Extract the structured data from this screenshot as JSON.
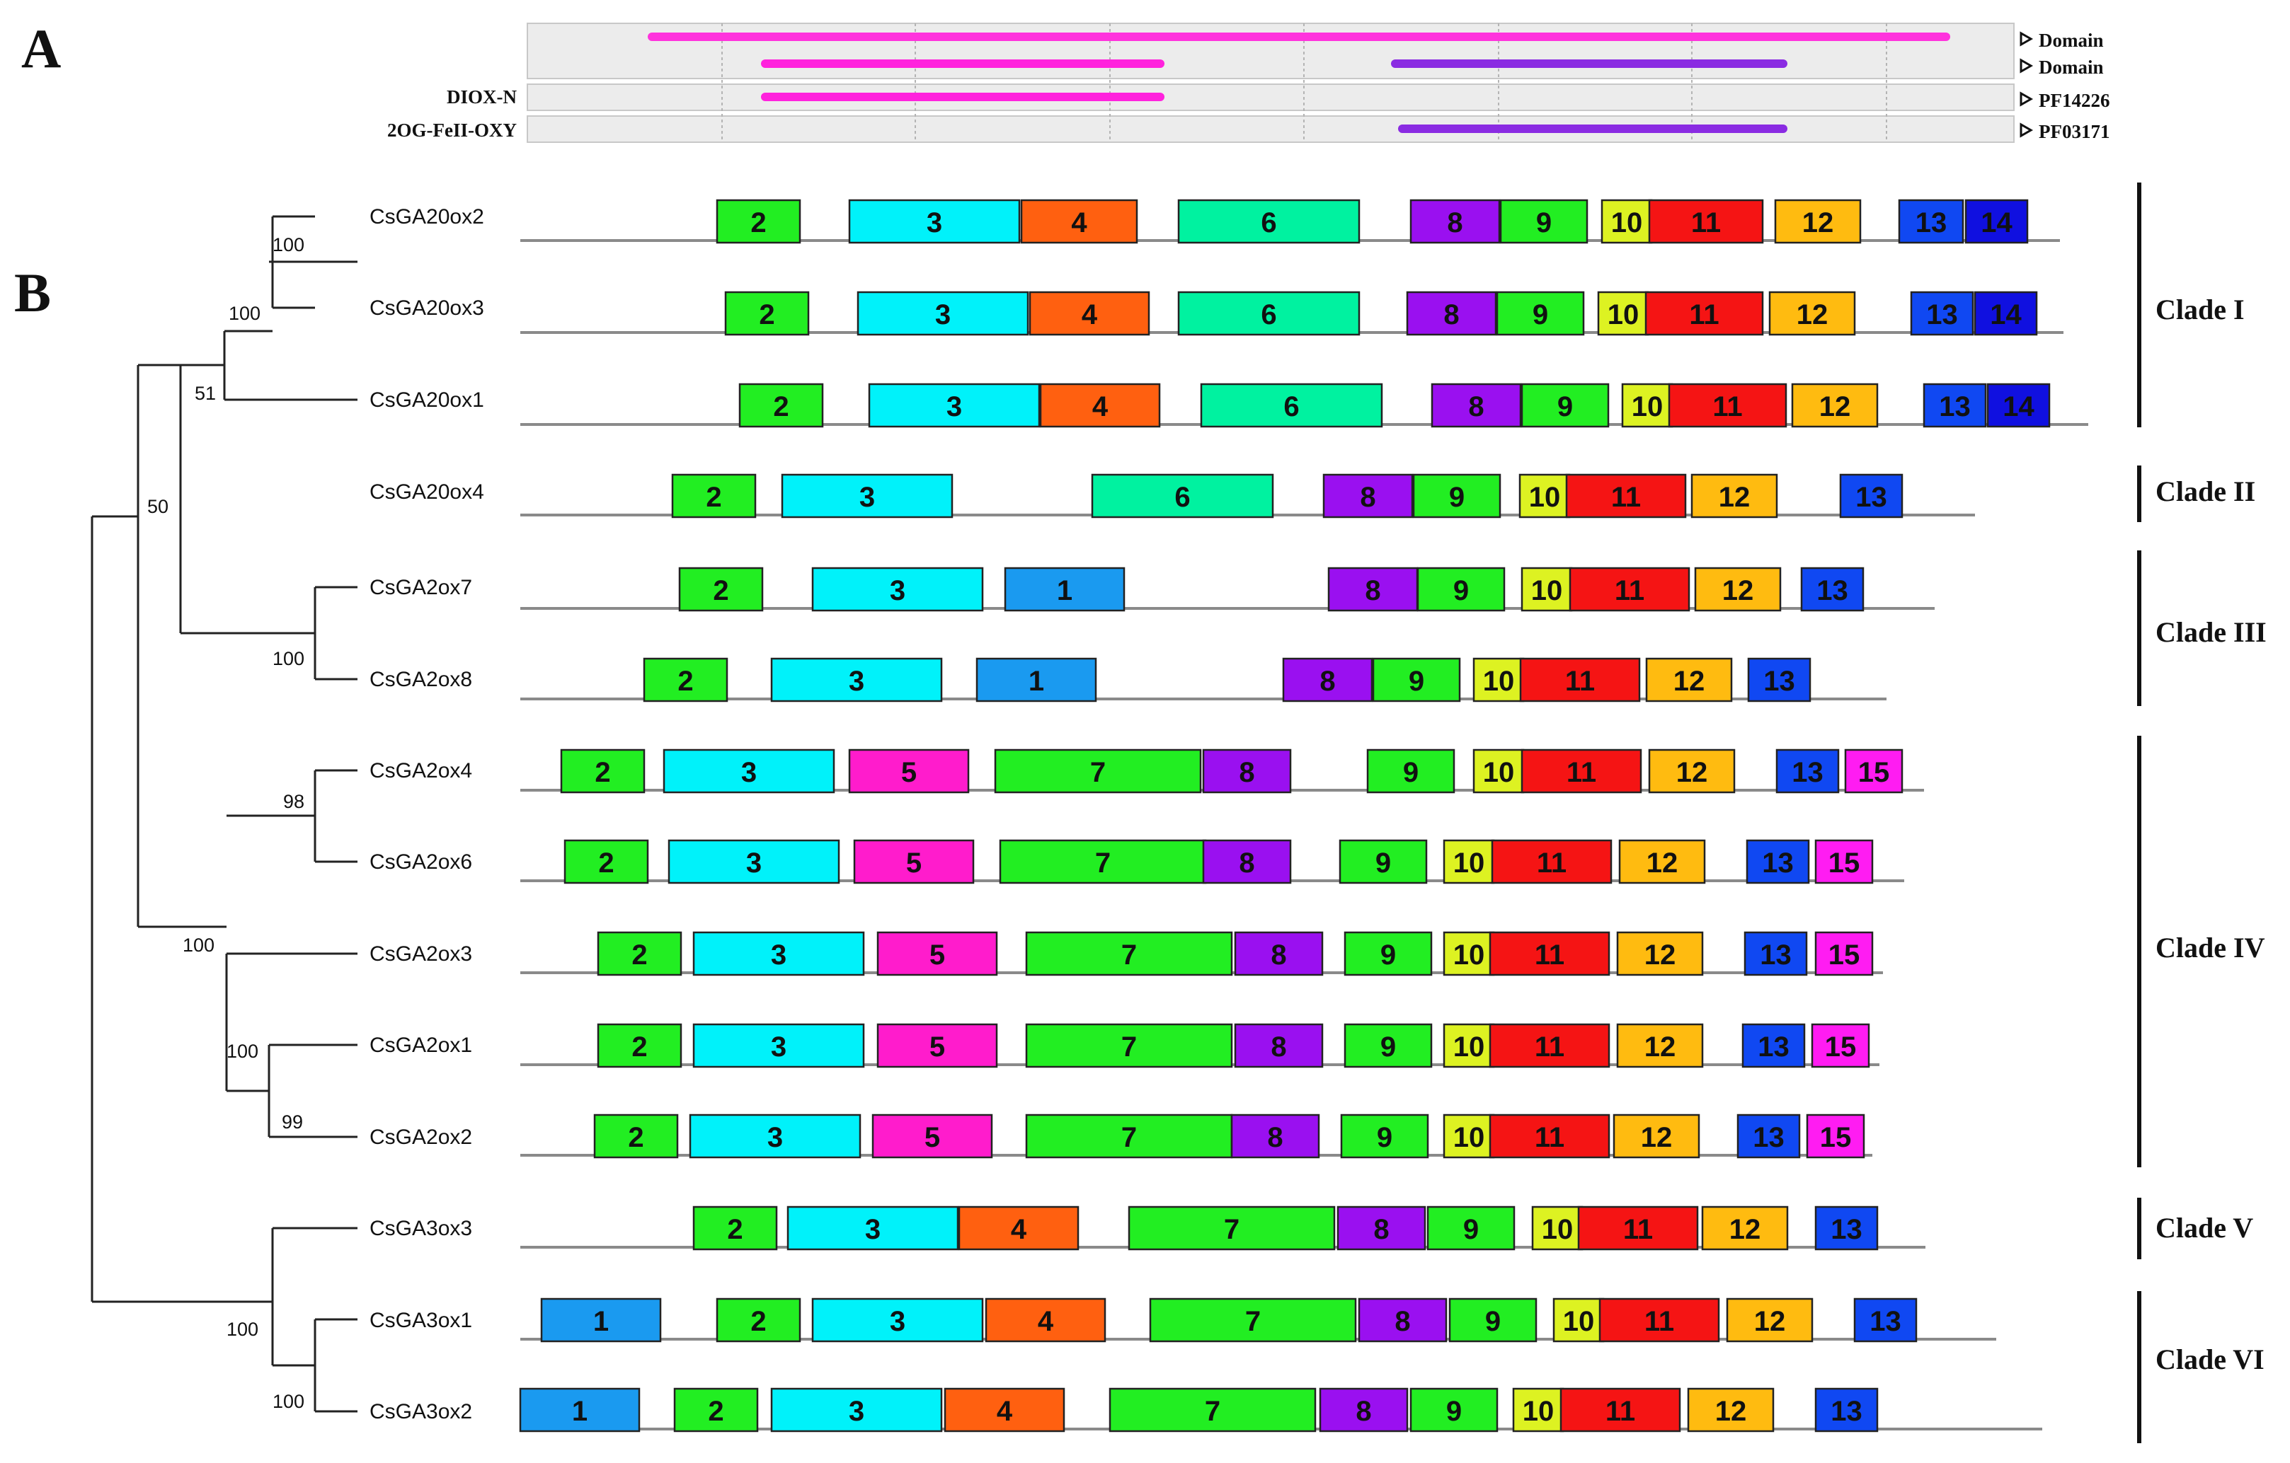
{
  "panels": {
    "a": "A",
    "b": "B"
  },
  "domain_tracks": [
    {
      "label": "",
      "right_label": "Domain"
    },
    {
      "label": "",
      "right_label": "Domain"
    },
    {
      "label": "DIOX-N",
      "right_label": "PF14226"
    },
    {
      "label": "2OG-FeII-OXY",
      "right_label": "PF03171"
    }
  ],
  "genes": [
    "CsGA20ox2",
    "CsGA20ox3",
    "CsGA20ox1",
    "CsGA20ox4",
    "CsGA2ox7",
    "CsGA2ox8",
    "CsGA2ox4",
    "CsGA2ox6",
    "CsGA2ox3",
    "CsGA2ox1",
    "CsGA2ox2",
    "CsGA3ox3",
    "CsGA3ox1",
    "CsGA3ox2"
  ],
  "bootstrap": [
    "100",
    "100",
    "51",
    "50",
    "100",
    "98",
    "100",
    "100",
    "99",
    "100",
    "100"
  ],
  "clades": [
    "Clade I",
    "Clade II",
    "Clade III",
    "Clade IV",
    "Clade V",
    "Clade VI"
  ],
  "motif_labels": [
    "1",
    "2",
    "3",
    "4",
    "5",
    "6",
    "7",
    "8",
    "9",
    "10",
    "11",
    "12",
    "13",
    "14",
    "15"
  ],
  "motif_colors": {
    "1": "#1a9af0",
    "2": "#22ee22",
    "3": "#00f2fa",
    "4": "#ff6010",
    "5": "#ff1ccc",
    "6": "#00f2a0",
    "7": "#22ee22",
    "8": "#9a10f0",
    "9": "#22ee22",
    "10": "#ddf222",
    "11": "#f51414",
    "12": "#ffbb10",
    "13": "#1048f2",
    "14": "#1010e0",
    "15": "#ff1cf2"
  }
}
